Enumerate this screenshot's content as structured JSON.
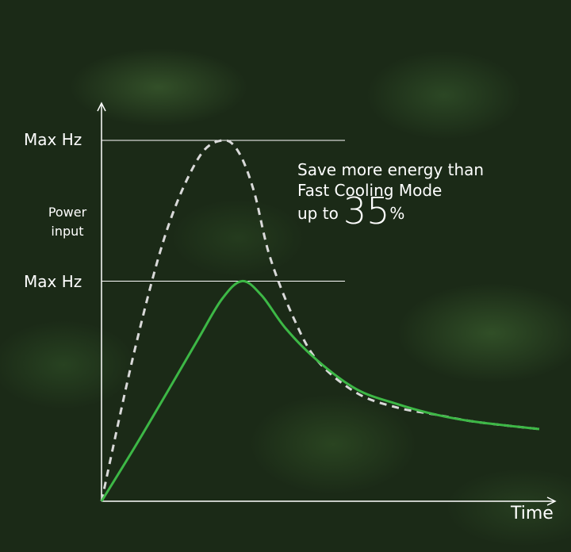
{
  "chart_data": {
    "type": "line",
    "xlabel": "Time",
    "ylabel": "Power input",
    "reference_lines": [
      {
        "label": "Max Hz",
        "y": 100
      },
      {
        "label": "Max Hz",
        "y": 61
      }
    ],
    "xlim": [
      0,
      100
    ],
    "ylim": [
      0,
      100
    ],
    "grid": false,
    "series": [
      {
        "style": "dashed",
        "color": "#d9d9d9",
        "x": [
          0,
          7.6,
          14.9,
          22.1,
          27.5,
          31.2,
          34.8,
          38.4,
          43.8,
          49.3,
          58.3,
          67.4,
          76.4,
          85.5,
          100
        ],
        "y": [
          0,
          42,
          75,
          95,
          100,
          97,
          86,
          68,
          51,
          39,
          30,
          26,
          24,
          22,
          20
        ]
      },
      {
        "style": "solid",
        "color": "#3db846",
        "x": [
          0,
          7.6,
          14.9,
          22.1,
          27.5,
          32.1,
          36.6,
          42,
          49.3,
          58.3,
          67.4,
          76.4,
          85.5,
          100
        ],
        "y": [
          0,
          15,
          30,
          45,
          56,
          61,
          57,
          48,
          39,
          31,
          27,
          24,
          22,
          20
        ]
      }
    ],
    "annotation": {
      "line1": "Save more energy than",
      "line2": "Fast Cooling Mode",
      "prefix": "up to",
      "value": "35",
      "unit": "%"
    }
  },
  "y_label_lines": [
    "Power",
    "input"
  ]
}
